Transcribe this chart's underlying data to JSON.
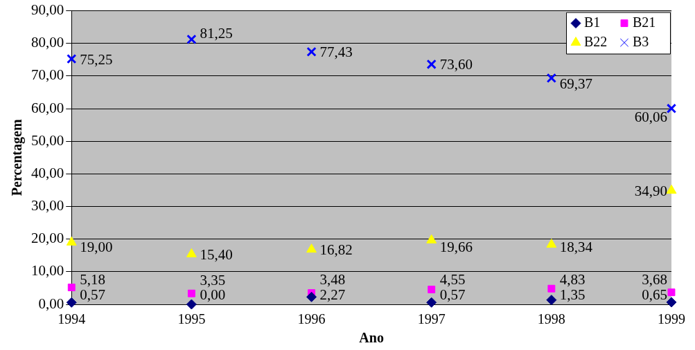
{
  "chart_data": {
    "type": "scatter",
    "xlabel": "Ano",
    "ylabel": "Percentagem",
    "categories": [
      "1994",
      "1995",
      "1996",
      "1997",
      "1998",
      "1999"
    ],
    "ylim": [
      0,
      90
    ],
    "yticks": [
      {
        "value": 0,
        "label": "0,00"
      },
      {
        "value": 10,
        "label": "10,00"
      },
      {
        "value": 20,
        "label": "20,00"
      },
      {
        "value": 30,
        "label": "30,00"
      },
      {
        "value": 40,
        "label": "40,00"
      },
      {
        "value": 50,
        "label": "50,00"
      },
      {
        "value": 60,
        "label": "60,00"
      },
      {
        "value": 70,
        "label": "70,00"
      },
      {
        "value": 80,
        "label": "80,00"
      },
      {
        "value": 90,
        "label": "90,00"
      }
    ],
    "grid": "y",
    "legend": "top right",
    "series": [
      {
        "name": "B1",
        "color": "#000080",
        "marker": "diamond",
        "values": [
          0.57,
          0,
          2.27,
          0.57,
          1.35,
          0.65
        ],
        "value_labels": [
          "0,57",
          "0,00",
          "2,27",
          "0,57",
          "1,35",
          "0,65"
        ]
      },
      {
        "name": "B21",
        "color": "#ff00ff",
        "marker": "square",
        "values": [
          5.18,
          3.35,
          3.48,
          4.55,
          4.83,
          3.68
        ],
        "value_labels": [
          "5,18",
          "3,35",
          "3,48",
          "4,55",
          "4,83",
          "3,68"
        ]
      },
      {
        "name": "B22",
        "color": "#ffff00",
        "marker": "triangle",
        "values": [
          19,
          15.4,
          16.82,
          19.66,
          18.34,
          34.9
        ],
        "value_labels": [
          "19,00",
          "15,40",
          "16,82",
          "19,66",
          "18,34",
          "34,90"
        ]
      },
      {
        "name": "B3",
        "color": "#0000ff",
        "marker": "cross",
        "values": [
          75.25,
          81.25,
          77.43,
          73.6,
          69.37,
          60.06
        ],
        "value_labels": [
          "75,25",
          "81,25",
          "77,43",
          "73,60",
          "69,37",
          "60,06"
        ]
      }
    ]
  }
}
